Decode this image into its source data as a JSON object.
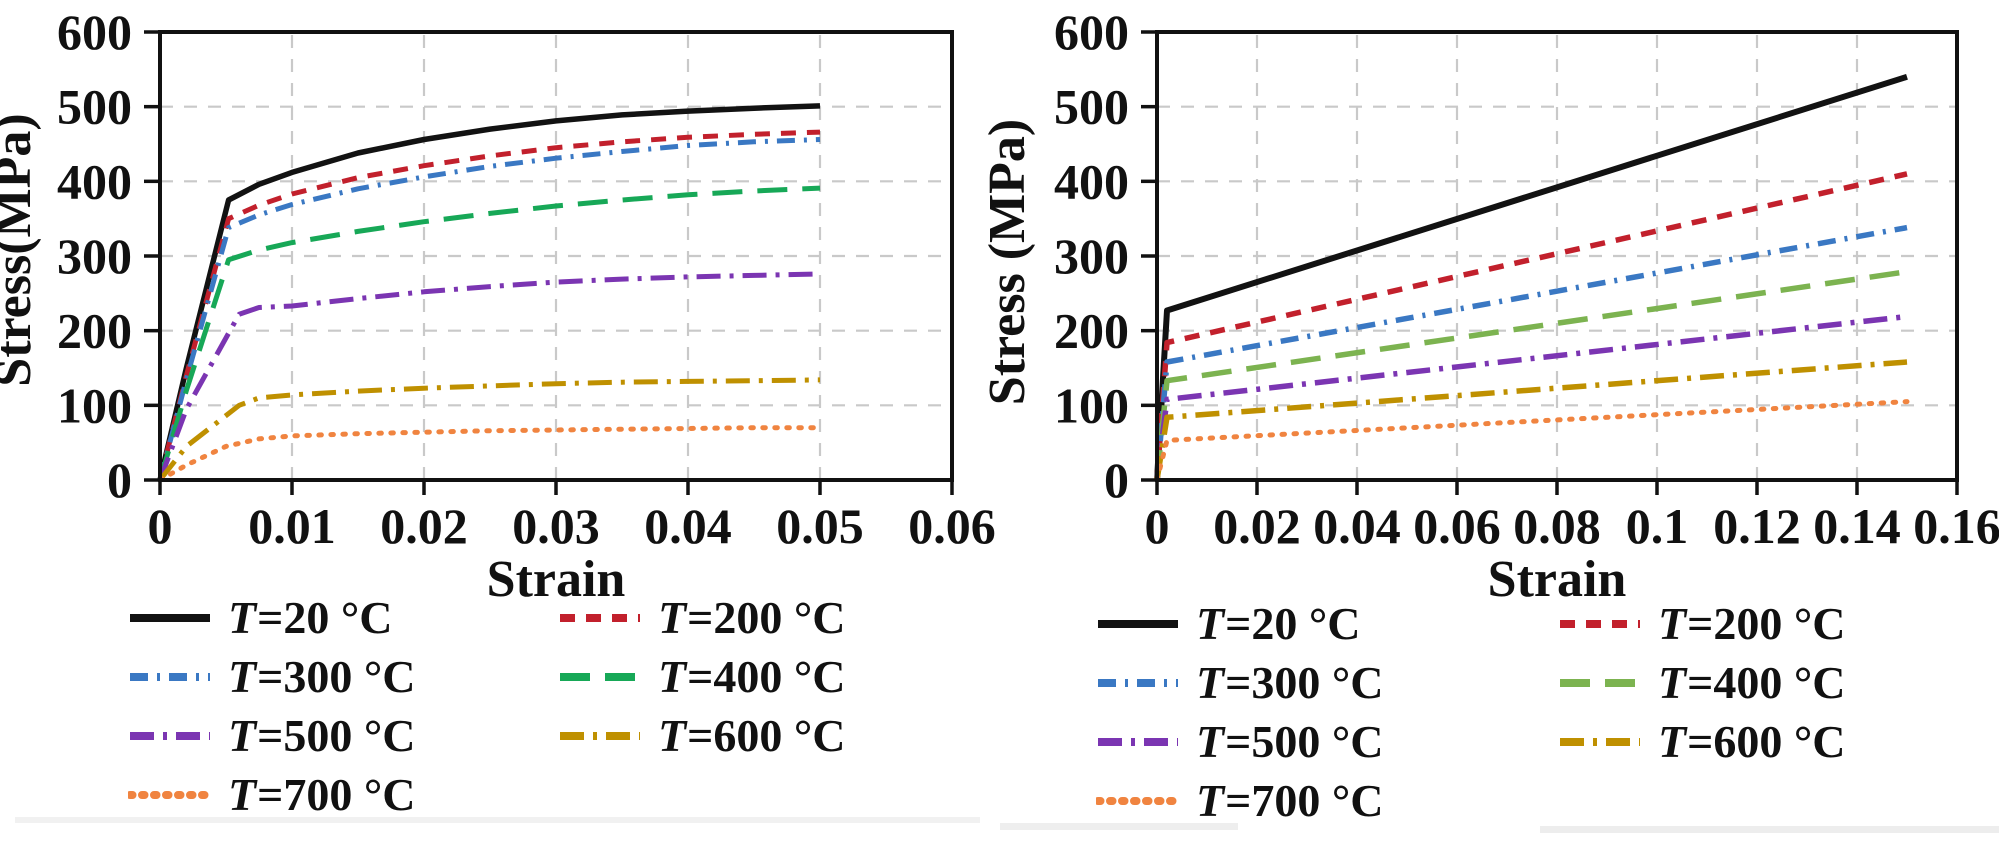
{
  "page": {
    "background": "#ffffff"
  },
  "chart_data": [
    {
      "type": "line",
      "title": "",
      "xlabel": "Strain",
      "ylabel": "Stress(MPa)",
      "xlim": [
        0,
        0.06
      ],
      "ylim": [
        0,
        600
      ],
      "grid": true,
      "legend_position": "below",
      "xticks": {
        "values": [
          0,
          0.01,
          0.02,
          0.03,
          0.04,
          0.05,
          0.06
        ],
        "labels": [
          "0",
          "0.01",
          "0.02",
          "0.03",
          "0.04",
          "0.05",
          "0.06"
        ]
      },
      "yticks": {
        "values": [
          0,
          100,
          200,
          300,
          400,
          500,
          600
        ],
        "labels": [
          "0",
          "100",
          "200",
          "300",
          "400",
          "500",
          "600"
        ]
      },
      "grid_color": "#c9c9c9",
      "series": [
        {
          "name": "T=20 °C",
          "legend_t": "T",
          "legend_rest": "=20 °C",
          "color": "#121212",
          "dash": "",
          "cap": "butt",
          "width": 5.5,
          "points": [
            [
              0,
              0
            ],
            [
              0.002,
              150
            ],
            [
              0.0052,
              375
            ],
            [
              0.0075,
              396
            ],
            [
              0.01,
              412
            ],
            [
              0.015,
              438
            ],
            [
              0.02,
              456
            ],
            [
              0.025,
              470
            ],
            [
              0.03,
              481
            ],
            [
              0.035,
              489
            ],
            [
              0.04,
              494
            ],
            [
              0.045,
              498
            ],
            [
              0.05,
              501
            ]
          ]
        },
        {
          "name": "T=200 °C",
          "legend_t": "T",
          "legend_rest": "=200 °C",
          "color": "#c2202c",
          "dash": "15 11",
          "cap": "butt",
          "width": 5,
          "points": [
            [
              0,
              0
            ],
            [
              0.002,
              140
            ],
            [
              0.0052,
              350
            ],
            [
              0.0075,
              368
            ],
            [
              0.01,
              383
            ],
            [
              0.015,
              405
            ],
            [
              0.02,
              421
            ],
            [
              0.025,
              434
            ],
            [
              0.03,
              445
            ],
            [
              0.035,
              453
            ],
            [
              0.04,
              459
            ],
            [
              0.045,
              463
            ],
            [
              0.05,
              466
            ]
          ]
        },
        {
          "name": "T=300 °C",
          "legend_t": "T",
          "legend_rest": "=300 °C",
          "color": "#3a78c3",
          "dash": "18 9 3 9",
          "cap": "butt",
          "width": 5,
          "points": [
            [
              0,
              0
            ],
            [
              0.002,
              135
            ],
            [
              0.0052,
              338
            ],
            [
              0.0075,
              355
            ],
            [
              0.01,
              369
            ],
            [
              0.015,
              390
            ],
            [
              0.02,
              406
            ],
            [
              0.025,
              420
            ],
            [
              0.03,
              431
            ],
            [
              0.035,
              440
            ],
            [
              0.04,
              448
            ],
            [
              0.045,
              453
            ],
            [
              0.05,
              456
            ]
          ]
        },
        {
          "name": "T=400 °C",
          "legend_t": "T",
          "legend_rest": "=400 °C",
          "color": "#17a857",
          "dash": "30 15",
          "cap": "butt",
          "width": 5,
          "points": [
            [
              0,
              0
            ],
            [
              0.002,
              120
            ],
            [
              0.0052,
              295
            ],
            [
              0.0075,
              308
            ],
            [
              0.01,
              318
            ],
            [
              0.015,
              333
            ],
            [
              0.02,
              346
            ],
            [
              0.025,
              357
            ],
            [
              0.03,
              367
            ],
            [
              0.035,
              375
            ],
            [
              0.04,
              382
            ],
            [
              0.045,
              387
            ],
            [
              0.05,
              391
            ]
          ]
        },
        {
          "name": "T=500 °C",
          "legend_t": "T",
          "legend_rest": "=500 °C",
          "color": "#7b35b2",
          "dash": "24 9 4 9",
          "cap": "butt",
          "width": 5,
          "points": [
            [
              0,
              0
            ],
            [
              0.002,
              95
            ],
            [
              0.006,
              222
            ],
            [
              0.0075,
              231
            ],
            [
              0.01,
              233
            ],
            [
              0.015,
              243
            ],
            [
              0.02,
              252
            ],
            [
              0.025,
              259
            ],
            [
              0.03,
              265
            ],
            [
              0.035,
              269
            ],
            [
              0.04,
              272
            ],
            [
              0.045,
              274
            ],
            [
              0.05,
              276
            ]
          ]
        },
        {
          "name": "T=600 °C",
          "legend_t": "T",
          "legend_rest": "=600 °C",
          "color": "#bf9000",
          "dash": "24 9 4 9",
          "cap": "butt",
          "width": 5,
          "points": [
            [
              0,
              0
            ],
            [
              0.002,
              45
            ],
            [
              0.006,
              100
            ],
            [
              0.0075,
              110
            ],
            [
              0.01,
              114
            ],
            [
              0.015,
              119
            ],
            [
              0.02,
              123
            ],
            [
              0.025,
              126
            ],
            [
              0.03,
              129
            ],
            [
              0.035,
              131
            ],
            [
              0.04,
              132
            ],
            [
              0.045,
              133
            ],
            [
              0.05,
              134
            ]
          ]
        },
        {
          "name": "T=700 °C",
          "legend_t": "T",
          "legend_rest": "=700 °C",
          "color": "#f08440",
          "dash": "2.5 9.5",
          "cap": "round",
          "width": 5,
          "points": [
            [
              0,
              0
            ],
            [
              0.002,
              20
            ],
            [
              0.005,
              45
            ],
            [
              0.0075,
              55
            ],
            [
              0.01,
              59
            ],
            [
              0.015,
              62
            ],
            [
              0.02,
              64
            ],
            [
              0.025,
              66
            ],
            [
              0.03,
              67
            ],
            [
              0.035,
              68
            ],
            [
              0.04,
              69
            ],
            [
              0.045,
              70
            ],
            [
              0.05,
              70
            ]
          ]
        }
      ]
    },
    {
      "type": "line",
      "title": "",
      "xlabel": "Strain",
      "ylabel": "Stress  (MPa)",
      "xlim": [
        0,
        0.16
      ],
      "ylim": [
        0,
        600
      ],
      "grid": true,
      "legend_position": "below",
      "xticks": {
        "values": [
          0,
          0.02,
          0.04,
          0.06,
          0.08,
          0.1,
          0.12,
          0.14,
          0.16
        ],
        "labels": [
          "0",
          "0.02",
          "0.04",
          "0.06",
          "0.08",
          "0.1",
          "0.12",
          "0.14",
          "0.16"
        ]
      },
      "yticks": {
        "values": [
          0,
          100,
          200,
          300,
          400,
          500,
          600
        ],
        "labels": [
          "0",
          "100",
          "200",
          "300",
          "400",
          "500",
          "600"
        ]
      },
      "grid_color": "#c9c9c9",
      "series": [
        {
          "name": "T=20 °C",
          "legend_t": "T",
          "legend_rest": "=20 °C",
          "color": "#121212",
          "dash": "",
          "cap": "butt",
          "width": 6,
          "points": [
            [
              0,
              0
            ],
            [
              0.002,
              227
            ],
            [
              0.15,
              540
            ]
          ]
        },
        {
          "name": "T=200 °C",
          "legend_t": "T",
          "legend_rest": "=200 °C",
          "color": "#c2202c",
          "dash": "15 11",
          "cap": "butt",
          "width": 5.5,
          "points": [
            [
              0,
              0
            ],
            [
              0.002,
              184
            ],
            [
              0.15,
              410
            ]
          ]
        },
        {
          "name": "T=300 °C",
          "legend_t": "T",
          "legend_rest": "=300 °C",
          "color": "#3a78c3",
          "dash": "18 9 3 9",
          "cap": "butt",
          "width": 5.5,
          "points": [
            [
              0,
              0
            ],
            [
              0.002,
              158
            ],
            [
              0.15,
              338
            ]
          ]
        },
        {
          "name": "T=400 °C",
          "legend_t": "T",
          "legend_rest": "=400 °C",
          "color": "#7cb350",
          "dash": "30 15",
          "cap": "butt",
          "width": 5.5,
          "points": [
            [
              0,
              0
            ],
            [
              0.002,
              133
            ],
            [
              0.15,
              279
            ]
          ]
        },
        {
          "name": "T=500 °C",
          "legend_t": "T",
          "legend_rest": "=500 °C",
          "color": "#7b35b2",
          "dash": "24 9 4 9",
          "cap": "butt",
          "width": 5.5,
          "points": [
            [
              0,
              0
            ],
            [
              0.002,
              108
            ],
            [
              0.15,
              219
            ]
          ]
        },
        {
          "name": "T=600 °C",
          "legend_t": "T",
          "legend_rest": "=600 °C",
          "color": "#bf9000",
          "dash": "24 9 4 9",
          "cap": "butt",
          "width": 5.5,
          "points": [
            [
              0,
              0
            ],
            [
              0.002,
              84
            ],
            [
              0.15,
              158
            ]
          ]
        },
        {
          "name": "T=700 °C",
          "legend_t": "T",
          "legend_rest": "=700 °C",
          "color": "#f08440",
          "dash": "2.5 9.5",
          "cap": "round",
          "width": 5,
          "points": [
            [
              0,
              0
            ],
            [
              0.002,
              53
            ],
            [
              0.15,
              105
            ]
          ]
        }
      ]
    }
  ]
}
